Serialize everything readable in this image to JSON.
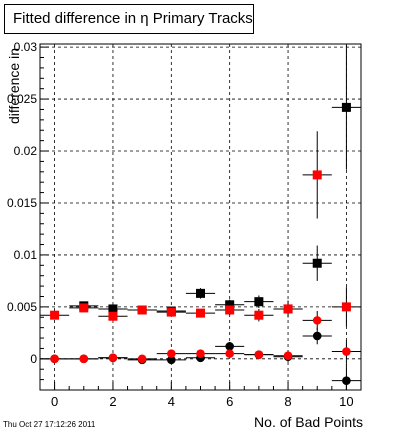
{
  "title": "Fitted difference in  η Primary Tracks",
  "timestamp": "Thu Oct 27 17:12:26 2011",
  "chart_data": {
    "type": "scatter",
    "title": "Fitted difference in  η Primary Tracks",
    "xlabel": "No. of Bad Points",
    "ylabel": "difference in",
    "xlim": [
      -0.5,
      10.5
    ],
    "ylim": [
      -0.003,
      0.0303
    ],
    "x_ticks": [
      0,
      2,
      4,
      6,
      8,
      10
    ],
    "x_tick_labels": [
      "0",
      "2",
      "4",
      "6",
      "8",
      "10"
    ],
    "y_ticks": [
      0,
      0.005,
      0.01,
      0.015,
      0.02,
      0.025,
      0.03
    ],
    "y_tick_labels": [
      "0",
      "0.005",
      "0.01",
      "0.015",
      "0.02",
      "0.025",
      "0.03"
    ],
    "grid": true,
    "series": [
      {
        "marker": "square",
        "color": "#000000",
        "points": [
          {
            "x": 1,
            "y": 0.0051,
            "yerr": 0.0002
          },
          {
            "x": 2,
            "y": 0.0048,
            "yerr": 0.0003
          },
          {
            "x": 3,
            "y": 0.0047,
            "yerr": 0.0003
          },
          {
            "x": 4,
            "y": 0.0046,
            "yerr": 0.0003
          },
          {
            "x": 5,
            "y": 0.0063,
            "yerr": 0.0005
          },
          {
            "x": 6,
            "y": 0.0052,
            "yerr": 0.0005
          },
          {
            "x": 7,
            "y": 0.0055,
            "yerr": 0.0006
          },
          {
            "x": 8,
            "y": 0.0048,
            "yerr": 0.0008
          },
          {
            "x": 9,
            "y": 0.0092,
            "yerr": 0.0017
          },
          {
            "x": 10,
            "y": 0.0242,
            "yerr": 0.006
          }
        ]
      },
      {
        "marker": "square",
        "color": "#ff0000",
        "points": [
          {
            "x": 0,
            "y": 0.0042,
            "yerr": 0.0001
          },
          {
            "x": 1,
            "y": 0.0049,
            "yerr": 0.0002
          },
          {
            "x": 2,
            "y": 0.0041,
            "yerr": 0.0002
          },
          {
            "x": 3,
            "y": 0.0047,
            "yerr": 0.0003
          },
          {
            "x": 4,
            "y": 0.0045,
            "yerr": 0.0003
          },
          {
            "x": 5,
            "y": 0.0044,
            "yerr": 0.0004
          },
          {
            "x": 6,
            "y": 0.0047,
            "yerr": 0.0005
          },
          {
            "x": 7,
            "y": 0.0042,
            "yerr": 0.0006
          },
          {
            "x": 8,
            "y": 0.0048,
            "yerr": 0.0008
          },
          {
            "x": 9,
            "y": 0.0177,
            "yerr": 0.0042
          },
          {
            "x": 10,
            "y": 0.005,
            "yerr": 0.0019
          }
        ]
      },
      {
        "marker": "circle",
        "color": "#000000",
        "points": [
          {
            "x": 0,
            "y": 0.0,
            "yerr": 0.0001
          },
          {
            "x": 1,
            "y": 0.0,
            "yerr": 0.0002
          },
          {
            "x": 2,
            "y": 0.0001,
            "yerr": 0.0002
          },
          {
            "x": 3,
            "y": -0.0001,
            "yerr": 0.0002
          },
          {
            "x": 4,
            "y": -0.0001,
            "yerr": 0.0003
          },
          {
            "x": 5,
            "y": 0.0001,
            "yerr": 0.0003
          },
          {
            "x": 6,
            "y": 0.0012,
            "yerr": 0.0004
          },
          {
            "x": 7,
            "y": 0.0004,
            "yerr": 0.0004
          },
          {
            "x": 8,
            "y": 0.0002,
            "yerr": 0.0005
          },
          {
            "x": 9,
            "y": 0.0022,
            "yerr": 0.0008
          },
          {
            "x": 10,
            "y": -0.0021,
            "yerr": 0.0016
          }
        ]
      },
      {
        "marker": "circle",
        "color": "#ff0000",
        "points": [
          {
            "x": 0,
            "y": 0.0,
            "yerr": 0.0001
          },
          {
            "x": 1,
            "y": 0.0,
            "yerr": 0.0002
          },
          {
            "x": 2,
            "y": 0.0001,
            "yerr": 0.0002
          },
          {
            "x": 3,
            "y": 0.0,
            "yerr": 0.0002
          },
          {
            "x": 4,
            "y": 0.0005,
            "yerr": 0.0003
          },
          {
            "x": 5,
            "y": 0.0005,
            "yerr": 0.0003
          },
          {
            "x": 6,
            "y": 0.0005,
            "yerr": 0.0004
          },
          {
            "x": 7,
            "y": 0.0004,
            "yerr": 0.0004
          },
          {
            "x": 8,
            "y": 0.0003,
            "yerr": 0.0005
          },
          {
            "x": 9,
            "y": 0.0037,
            "yerr": 0.0009
          },
          {
            "x": 10,
            "y": 0.0007,
            "yerr": 0.0011
          }
        ]
      }
    ]
  }
}
